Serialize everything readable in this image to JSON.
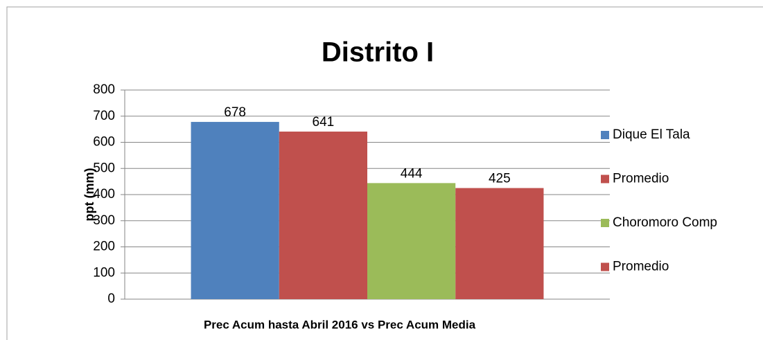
{
  "chart_data": {
    "type": "bar",
    "title": "Distrito I",
    "x_label": "Prec Acum hasta Abril 2016 vs Prec Acum Media",
    "y_label": "ppt (mm)",
    "categories": [
      null
    ],
    "series": [
      {
        "name": "Dique El Tala",
        "color": "#4f81bd",
        "values": [
          678
        ]
      },
      {
        "name": "Promedio",
        "color": "#c0504d",
        "values": [
          641
        ]
      },
      {
        "name": "Choromoro Comp",
        "color": "#9bbb59",
        "values": [
          444
        ]
      },
      {
        "name": "Promedio",
        "color": "#c0504d",
        "values": [
          425
        ]
      }
    ],
    "ylim": [
      0,
      800
    ],
    "yticks": [
      0,
      100,
      200,
      300,
      400,
      500,
      600,
      700,
      800
    ],
    "grid": true,
    "legend": "right"
  }
}
